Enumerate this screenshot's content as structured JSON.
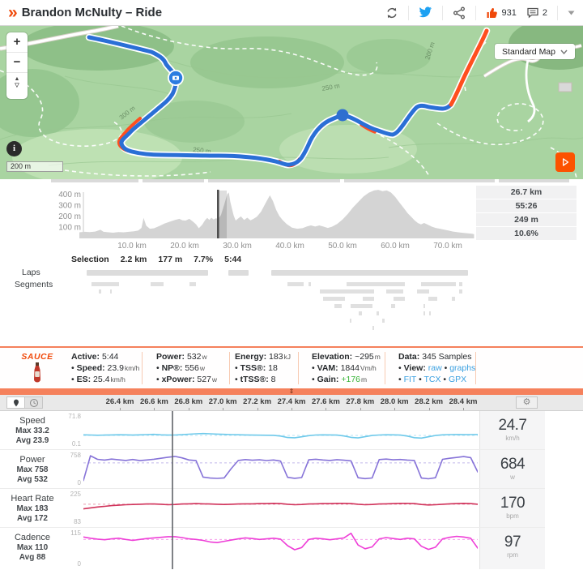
{
  "header": {
    "logo_glyph": "»",
    "title": "Brandon McNulty – Ride",
    "like_count": "931",
    "comment_count": "2"
  },
  "map": {
    "layer_selector": "Standard Map",
    "scale_label": "200 m",
    "zoom_in_label": "+",
    "zoom_out_label": "−",
    "attribution_label": "i",
    "contour_labels": [
      "300 m",
      "250 m",
      "250 m",
      "200 m"
    ]
  },
  "elevation": {
    "y_ticks": [
      {
        "label": "400 m",
        "m": 400
      },
      {
        "label": "300 m",
        "m": 300
      },
      {
        "label": "200 m",
        "m": 200
      },
      {
        "label": "100 m",
        "m": 100
      }
    ],
    "x_ticks": [
      {
        "label": "10.0 km",
        "km": 10
      },
      {
        "label": "20.0 km",
        "km": 20
      },
      {
        "label": "30.0 km",
        "km": 30
      },
      {
        "label": "40.0 km",
        "km": 40
      },
      {
        "label": "50.0 km",
        "km": 50
      },
      {
        "label": "60.0 km",
        "km": 60
      },
      {
        "label": "70.0 km",
        "km": 70
      }
    ],
    "stats": [
      "26.7 km",
      "55:26",
      "249 m",
      "10.6%"
    ],
    "selection_km": [
      26.2,
      28.0
    ],
    "cursor_km": 26.35,
    "profile": [
      [
        0,
        55
      ],
      [
        1,
        60
      ],
      [
        2,
        57
      ],
      [
        3,
        62
      ],
      [
        4,
        78
      ],
      [
        4.6,
        60
      ],
      [
        5.4,
        56
      ],
      [
        6.4,
        52
      ],
      [
        7.4,
        57
      ],
      [
        8.4,
        55
      ],
      [
        9.4,
        60
      ],
      [
        10.4,
        64
      ],
      [
        11.2,
        72
      ],
      [
        11.8,
        95
      ],
      [
        12.2,
        186
      ],
      [
        12.7,
        115
      ],
      [
        13.4,
        88
      ],
      [
        14.2,
        92
      ],
      [
        15.2,
        112
      ],
      [
        16.2,
        136
      ],
      [
        17.2,
        152
      ],
      [
        18.2,
        168
      ],
      [
        19,
        178
      ],
      [
        19.6,
        164
      ],
      [
        20.2,
        162
      ],
      [
        20.9,
        178
      ],
      [
        21.6,
        152
      ],
      [
        22.2,
        126
      ],
      [
        22.7,
        92
      ],
      [
        23.3,
        122
      ],
      [
        23.9,
        166
      ],
      [
        24.3,
        186
      ],
      [
        24.7,
        168
      ],
      [
        25.1,
        188
      ],
      [
        25.5,
        172
      ],
      [
        25.9,
        182
      ],
      [
        26.4,
        178
      ],
      [
        26.9,
        212
      ],
      [
        27.5,
        305
      ],
      [
        28.1,
        402
      ],
      [
        28.4,
        418
      ],
      [
        28.7,
        330
      ],
      [
        29.3,
        210
      ],
      [
        29.7,
        162
      ],
      [
        30.3,
        186
      ],
      [
        30.7,
        200
      ],
      [
        31.3,
        168
      ],
      [
        31.9,
        188
      ],
      [
        32.5,
        164
      ],
      [
        33.1,
        178
      ],
      [
        33.7,
        196
      ],
      [
        34.5,
        242
      ],
      [
        35.5,
        332
      ],
      [
        36.2,
        392
      ],
      [
        36.8,
        338
      ],
      [
        37.4,
        258
      ],
      [
        38,
        204
      ],
      [
        38.6,
        168
      ],
      [
        39.4,
        130
      ],
      [
        40.4,
        98
      ],
      [
        41.4,
        88
      ],
      [
        42.4,
        93
      ],
      [
        43.2,
        108
      ],
      [
        44,
        118
      ],
      [
        44.8,
        108
      ],
      [
        45.6,
        118
      ],
      [
        46.4,
        107
      ],
      [
        47.2,
        95
      ],
      [
        48,
        106
      ],
      [
        49,
        132
      ],
      [
        50,
        172
      ],
      [
        51,
        222
      ],
      [
        52,
        282
      ],
      [
        53,
        332
      ],
      [
        54,
        382
      ],
      [
        55,
        416
      ],
      [
        56,
        436
      ],
      [
        56.8,
        442
      ],
      [
        57.6,
        430
      ],
      [
        58.4,
        436
      ],
      [
        59.2,
        418
      ],
      [
        60,
        378
      ],
      [
        60.8,
        328
      ],
      [
        61.6,
        278
      ],
      [
        62.4,
        228
      ],
      [
        63.1,
        194
      ],
      [
        63.7,
        164
      ],
      [
        64.3,
        140
      ],
      [
        64.9,
        128
      ],
      [
        65.5,
        140
      ],
      [
        66.1,
        128
      ],
      [
        66.9,
        108
      ],
      [
        67.7,
        95
      ],
      [
        68.5,
        88
      ],
      [
        69.3,
        80
      ],
      [
        70.1,
        72
      ],
      [
        71,
        62
      ],
      [
        72,
        55
      ],
      [
        73,
        50
      ],
      [
        74,
        45
      ],
      [
        74.6,
        42
      ],
      [
        75,
        38
      ]
    ]
  },
  "strip": {
    "bars": [
      [
        63,
        108
      ],
      [
        176,
        76
      ],
      [
        257,
        163
      ],
      [
        425,
        186
      ],
      [
        616,
        87
      ]
    ]
  },
  "selection": {
    "label": "Selection",
    "distance": "2.2 km",
    "elevation_gain": "177 m",
    "grade": "7.7%",
    "time": "5:44"
  },
  "laps": {
    "label": "Laps",
    "bars": [
      [
        107,
        150
      ],
      [
        282,
        25
      ],
      [
        335,
        243
      ]
    ]
  },
  "segments": {
    "label": "Segments",
    "rows": [
      [
        [
          113,
          34
        ],
        [
          186,
          16
        ],
        [
          234,
          8
        ],
        [
          355,
          20
        ],
        [
          381,
          3
        ],
        [
          428,
          72
        ],
        [
          520,
          43
        ],
        [
          567,
          4
        ]
      ],
      [
        [
          122,
          3
        ],
        [
          136,
          2
        ],
        [
          395,
          67
        ],
        [
          477,
          21
        ],
        [
          515,
          15
        ],
        [
          567,
          4
        ]
      ],
      [
        [
          399,
          27
        ],
        [
          448,
          14
        ],
        [
          486,
          14
        ],
        [
          529,
          11
        ],
        [
          558,
          4
        ]
      ],
      [
        [
          413,
          9
        ],
        [
          433,
          27
        ],
        [
          483,
          5
        ],
        [
          523,
          2
        ]
      ],
      [
        [
          443,
          4
        ],
        [
          465,
          3
        ],
        [
          523,
          2
        ],
        [
          530,
          2
        ]
      ],
      [
        [
          432,
          2
        ],
        [
          472,
          3
        ]
      ],
      [
        [
          460,
          2
        ]
      ]
    ]
  },
  "sauce": {
    "logo": "SAUCE",
    "columns": [
      {
        "head_label": "Active:",
        "head_value": "5:44",
        "head_unit": "",
        "items": [
          {
            "label": "Speed:",
            "value": "23.9",
            "unit": "km/h"
          },
          {
            "label": "ES:",
            "value": "25.4",
            "unit": "km/h"
          }
        ]
      },
      {
        "head_label": "Power:",
        "head_value": "532",
        "head_unit": "w",
        "items": [
          {
            "label": "NP®:",
            "value": "556",
            "unit": "w"
          },
          {
            "label": "xPower:",
            "value": "527",
            "unit": "w"
          }
        ]
      },
      {
        "head_label": "Energy:",
        "head_value": "183",
        "head_unit": "kJ",
        "items": [
          {
            "label": "TSS®:",
            "value": "18",
            "unit": ""
          },
          {
            "label": "tTSS®:",
            "value": "8",
            "unit": ""
          }
        ]
      },
      {
        "head_label": "Elevation:",
        "head_value": "~295",
        "head_unit": "m",
        "items": [
          {
            "label": "VAM:",
            "value": "1844",
            "unit": "Vm/h"
          },
          {
            "label": "Gain:",
            "value": "+176",
            "unit": "m",
            "color": "#35b335"
          }
        ]
      },
      {
        "head_label": "Data:",
        "head_value": "345 Samples",
        "head_unit": "",
        "items": [
          {
            "label": "View:",
            "links": [
              "raw",
              "graphs"
            ]
          },
          {
            "links": [
              "FIT",
              "TCX",
              "GPX"
            ]
          }
        ]
      }
    ]
  },
  "splitter": {
    "glyph": "⇕"
  },
  "graph_toolbar": {
    "x_ticks": [
      "26.4 km",
      "26.6 km",
      "26.8 km",
      "27.0 km",
      "27.2 km",
      "27.4 km",
      "27.6 km",
      "27.8 km",
      "28.0 km",
      "28.2 km",
      "28.4 km"
    ]
  },
  "graphs": {
    "rows": [
      {
        "name": "Speed",
        "max_label": "Max 33.2",
        "avg_label": "Avg 23.9",
        "y_top_label": "71.8",
        "y_bottom_label": "0.1",
        "range": [
          0.1,
          71.8
        ],
        "avg": 23.9,
        "current": "24.7",
        "unit": "km/h",
        "color": "#6ec9ea",
        "values": [
          25.3,
          24.9,
          24.4,
          24.7,
          25.1,
          25.4,
          25.2,
          24.8,
          25.3,
          25.9,
          26.4,
          25.2,
          24.7,
          24.9,
          25.6,
          26.8,
          27.6,
          28.2,
          27.6,
          26.9,
          26.3,
          25.8,
          25.4,
          25.1,
          24.8,
          24.6,
          24.4,
          24.1,
          22.5,
          19.2,
          18.6,
          20.8,
          23.5,
          24.9,
          25.3,
          25.1,
          24.7,
          22.8,
          19.5,
          18.3,
          21.0,
          23.8,
          25.0,
          25.5,
          25.3,
          24.7,
          22.5,
          18.8,
          17.9,
          20.9,
          23.8,
          25.2,
          25.8,
          26.0,
          25.7,
          25.9,
          26.1
        ]
      },
      {
        "name": "Power",
        "max_label": "Max 758",
        "avg_label": "Avg 532",
        "y_top_label": "758",
        "y_bottom_label": "0",
        "range": [
          0,
          758
        ],
        "avg": 532,
        "current": "684",
        "unit": "w",
        "color": "#8673d8",
        "values": [
          120,
          700,
          615,
          598,
          622,
          605,
          590,
          612,
          585,
          600,
          618,
          640,
          665,
          684,
          650,
          600,
          585,
          200,
          178,
          170,
          182,
          400,
          590,
          610,
          595,
          605,
          588,
          600,
          575,
          195,
          172,
          190,
          605,
          618,
          600,
          590,
          608,
          595,
          580,
          185,
          165,
          180,
          610,
          622,
          605,
          612,
          598,
          590,
          178,
          162,
          185,
          615,
          640,
          660,
          680,
          655,
          320
        ]
      },
      {
        "name": "Heart Rate",
        "max_label": "Max 183",
        "avg_label": "Avg 172",
        "y_top_label": "225",
        "y_bottom_label": "83",
        "range": [
          83,
          225
        ],
        "avg": 172,
        "current": "170",
        "unit": "bpm",
        "color": "#d0325a",
        "values": [
          152,
          156,
          160,
          163,
          166,
          168,
          170,
          171,
          172,
          173,
          173,
          172,
          170,
          171,
          173,
          174,
          175,
          174,
          173,
          172,
          171,
          172,
          173,
          174,
          174,
          175,
          175,
          176,
          175,
          172,
          170,
          171,
          173,
          174,
          175,
          175,
          176,
          176,
          175,
          172,
          170,
          171,
          173,
          174,
          175,
          176,
          176,
          175,
          171,
          169,
          170,
          172,
          174,
          175,
          176,
          175,
          172
        ]
      },
      {
        "name": "Cadence",
        "max_label": "Max 110",
        "avg_label": "Avg 88",
        "y_top_label": "115",
        "y_bottom_label": "0",
        "range": [
          0,
          115
        ],
        "avg": 88,
        "current": "97",
        "unit": "rpm",
        "color": "#ee3fd7",
        "values": [
          96,
          92,
          89,
          87,
          90,
          92,
          88,
          85,
          88,
          91,
          93,
          95,
          97,
          97,
          94,
          90,
          88,
          85,
          80,
          78,
          82,
          86,
          90,
          93,
          91,
          88,
          90,
          92,
          89,
          68,
          55,
          62,
          88,
          92,
          90,
          87,
          90,
          93,
          108,
          70,
          58,
          64,
          90,
          94,
          91,
          88,
          92,
          90,
          66,
          56,
          63,
          90,
          95,
          98,
          96,
          92,
          60
        ]
      }
    ]
  }
}
